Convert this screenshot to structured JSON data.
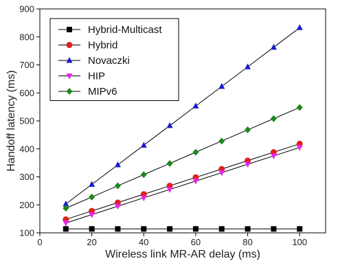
{
  "chart_data": {
    "type": "line",
    "title": "",
    "xlabel": "Wireless link MR-AR delay (ms)",
    "ylabel": "Handoff latency (ms)",
    "xlim": [
      0,
      110
    ],
    "ylim": [
      100,
      900
    ],
    "xticks": [
      0,
      20,
      40,
      60,
      80,
      100
    ],
    "yticks": [
      100,
      200,
      300,
      400,
      500,
      600,
      700,
      800,
      900
    ],
    "x": [
      10,
      20,
      30,
      40,
      50,
      60,
      70,
      80,
      90,
      100
    ],
    "grid": false,
    "legend_position": "top-left",
    "series": [
      {
        "name": "Hybrid-Multicast",
        "color": "#000000",
        "marker": "square",
        "values": [
          114,
          114,
          114,
          114,
          114,
          114,
          114,
          114,
          114,
          114
        ]
      },
      {
        "name": "Hybrid",
        "color": "#e02020",
        "marker": "circle",
        "values": [
          148,
          178,
          208,
          238,
          268,
          298,
          328,
          358,
          388,
          418
        ]
      },
      {
        "name": "Novaczki",
        "color": "#1a1ad0",
        "marker": "triangle-up",
        "values": [
          203,
          273,
          343,
          413,
          483,
          553,
          623,
          693,
          763,
          833
        ]
      },
      {
        "name": "HIP",
        "color": "#ee22ee",
        "marker": "triangle-down",
        "values": [
          135,
          165,
          195,
          225,
          255,
          285,
          315,
          345,
          375,
          405
        ]
      },
      {
        "name": "MIPv6",
        "color": "#1a8a1a",
        "marker": "diamond",
        "values": [
          188,
          228,
          268,
          308,
          348,
          388,
          428,
          468,
          508,
          548
        ]
      }
    ]
  }
}
